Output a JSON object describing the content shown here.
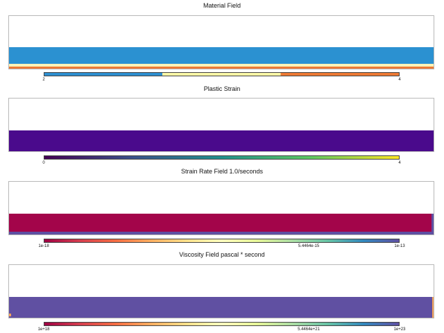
{
  "panels": [
    {
      "title": "Material Field",
      "colorbar": {
        "type": "discrete",
        "stops": [
          "#2e8fd0",
          "#f7f5a6",
          "#ec7a35"
        ],
        "ticks": [
          "2",
          "4"
        ]
      },
      "fill_color": "#2b91d1",
      "edge_colors": [
        "#fbf3b8",
        "#ec7a35"
      ]
    },
    {
      "title": "Plastic Strain",
      "colorbar": {
        "type": "gradient",
        "stops": [
          "#440154",
          "#3b528b",
          "#21918c",
          "#5ec962",
          "#fde725"
        ],
        "ticks": [
          "0",
          "4"
        ]
      },
      "fill_color": "#4a0a8c"
    },
    {
      "title": "Strain Rate Field 1.0/seconds",
      "colorbar": {
        "type": "gradient",
        "stops": [
          "#9e0142",
          "#d53e4f",
          "#f46d43",
          "#fdae61",
          "#fee08b",
          "#ffffbf",
          "#e6f598",
          "#abdda4",
          "#66c2a5",
          "#3288bd",
          "#5e4fa2"
        ],
        "ticks": [
          "1e-18",
          "5.4464e-15",
          "1e-13"
        ]
      },
      "fill_color": "#a3054a",
      "edge_colors": [
        "#5e4fa2"
      ]
    },
    {
      "title": "Viscosity Field pascal * second",
      "colorbar": {
        "type": "gradient",
        "stops": [
          "#9e0142",
          "#d53e4f",
          "#f46d43",
          "#fdae61",
          "#fee08b",
          "#ffffbf",
          "#e6f598",
          "#abdda4",
          "#66c2a5",
          "#3288bd",
          "#5e4fa2"
        ],
        "ticks": [
          "1e+18",
          "5.4464e+21",
          "1e+23"
        ]
      },
      "fill_color": "#6050a2",
      "edge_colors": [
        "#f4a45a"
      ]
    }
  ]
}
